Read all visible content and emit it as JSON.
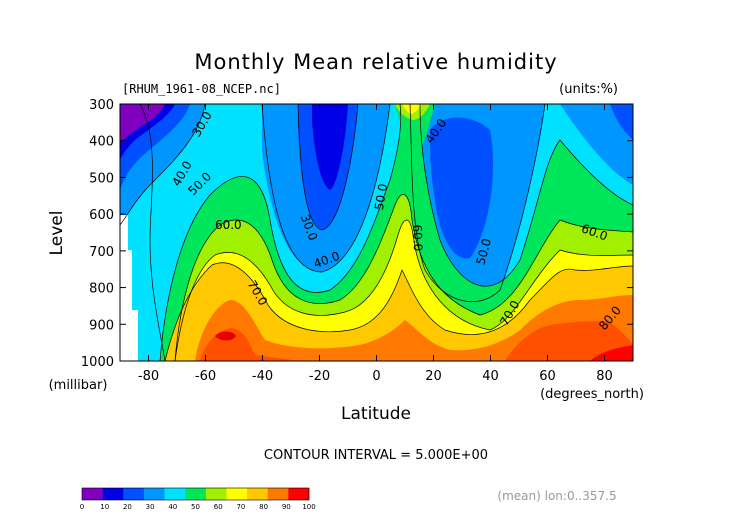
{
  "chart_data": {
    "type": "heatmap",
    "title": "Monthly Mean relative humidity",
    "file_label": "[RHUM_1961-08_NCEP.nc]",
    "units_label": "(units:%)",
    "xlabel": "Latitude",
    "x_units": "(degrees_north)",
    "ylabel": "Level",
    "y_units": "(millibar)",
    "contour_interval_text": "CONTOUR INTERVAL = 5.000E+00",
    "mean_note": "(mean) lon:0..357.5",
    "xlim": [
      -90,
      90
    ],
    "ylim": [
      1000,
      300
    ],
    "x_ticks": [
      -80,
      -60,
      -40,
      -20,
      0,
      20,
      40,
      60,
      80
    ],
    "x_tick_labels": [
      "-80",
      "-60",
      "-40",
      "-20",
      "0",
      "20",
      "40",
      "60",
      "80"
    ],
    "y_ticks": [
      300,
      400,
      500,
      600,
      700,
      800,
      900,
      1000
    ],
    "y_tick_labels": [
      "300",
      "400",
      "500",
      "600",
      "700",
      "800",
      "900",
      "1000"
    ],
    "colorbar": {
      "levels": [
        0,
        10,
        20,
        30,
        40,
        50,
        60,
        70,
        80,
        90,
        100
      ],
      "level_labels": [
        "0",
        "10",
        "20",
        "30",
        "40",
        "50",
        "60",
        "70",
        "80",
        "90",
        "100"
      ],
      "colors": [
        "#8000c0",
        "#0000e6",
        "#0050ff",
        "#0096ff",
        "#00e1ff",
        "#00e65a",
        "#a0f000",
        "#ffff00",
        "#ffc800",
        "#ff7800",
        "#ff0000"
      ]
    },
    "contour_labels": [
      {
        "text": "30.0",
        "lat": -60,
        "level": 360,
        "angle": -60
      },
      {
        "text": "40.0",
        "lat": -67,
        "level": 495,
        "angle": -60
      },
      {
        "text": "50.0",
        "lat": -61,
        "level": 525,
        "angle": -45
      },
      {
        "text": "60.0",
        "lat": -52,
        "level": 640,
        "angle": 0
      },
      {
        "text": "70.0",
        "lat": -43,
        "level": 820,
        "angle": 60
      },
      {
        "text": "30.0",
        "lat": -25,
        "level": 640,
        "angle": 70
      },
      {
        "text": "40.0",
        "lat": -17,
        "level": 735,
        "angle": -20
      },
      {
        "text": "50.0",
        "lat": 3,
        "level": 555,
        "angle": -80
      },
      {
        "text": "60.0",
        "lat": 13,
        "level": 665,
        "angle": 88
      },
      {
        "text": "40.0",
        "lat": 22,
        "level": 380,
        "angle": -55
      },
      {
        "text": "50.0",
        "lat": 39,
        "level": 705,
        "angle": -75
      },
      {
        "text": "70.0",
        "lat": 48,
        "level": 875,
        "angle": -60
      },
      {
        "text": "60.0",
        "lat": 76,
        "level": 660,
        "angle": 20
      },
      {
        "text": "80.0",
        "lat": 83,
        "level": 890,
        "angle": -50
      }
    ],
    "grid": false
  }
}
